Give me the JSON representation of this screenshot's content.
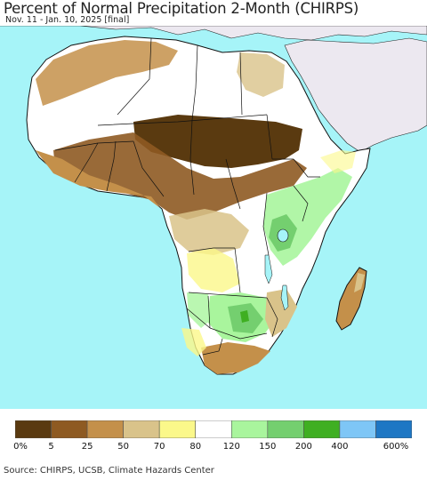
{
  "title": "Percent of Normal Precipitation 2-Month (CHIRPS)",
  "subtitle": "Nov. 11 - Jan. 10, 2025 [final]",
  "source": "Source: CHIRPS, UCSB, Climate Hazards Center",
  "colors": {
    "ocean": "#a6f4f8",
    "outside_land": "#ece8f0",
    "no_data": "#ffffff",
    "border": "#111111"
  },
  "legend": {
    "colors": [
      "#5a3a10",
      "#8e5a22",
      "#c4904a",
      "#d9c38a",
      "#fbf88a",
      "#ffffff",
      "#a9f59d",
      "#74cf6f",
      "#3faf22",
      "#7ec6f6",
      "#1e77c4"
    ],
    "tick_labels": [
      "0%",
      "5",
      "25",
      "50",
      "70",
      "80",
      "120",
      "150",
      "200",
      "400",
      "600%"
    ]
  }
}
